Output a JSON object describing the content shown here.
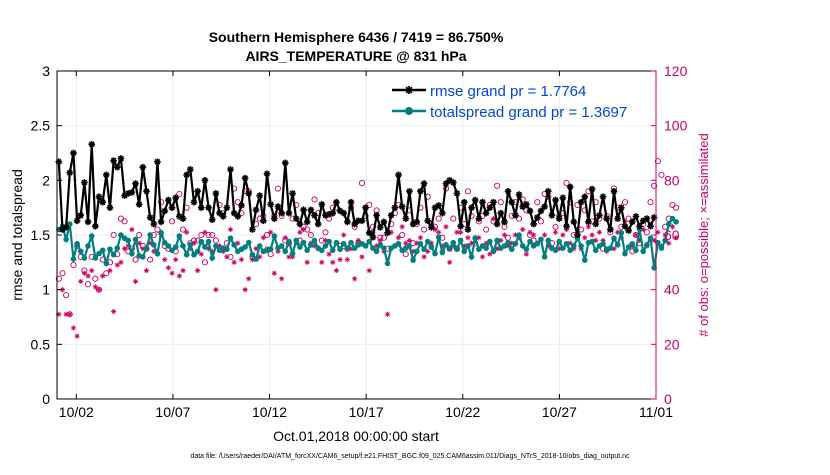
{
  "chart_data": {
    "type": "line",
    "title": [
      "Southern Hemisphere 6436 / 7419 = 86.750%",
      "AIRS_TEMPERATURE @ 831 hPa"
    ],
    "xlabel": "Oct.01,2018 00:00:00 start",
    "ylabel_left": "rmse and totalspread",
    "ylabel_right": "# of obs: o=possible; ×=assimilated",
    "footer": "data file: /Users/raeder/DAI/ATM_forcXX/CAM6_setup/f.e21.FHIST_BGC.f09_025.CAM6assim.011/Diags_NTrS_2018-10/obs_diag_output.nc",
    "xlim": [
      0.5,
      31.5
    ],
    "ylim_left": [
      0,
      3
    ],
    "ylim_right": [
      0,
      120
    ],
    "x_ticks": [
      1.5,
      6.5,
      11.5,
      16.5,
      21.5,
      26.5,
      31.5
    ],
    "x_tick_labels": [
      "10/02",
      "10/07",
      "10/12",
      "10/17",
      "10/22",
      "10/27",
      "11/01"
    ],
    "y_ticks_left": [
      0,
      0.5,
      1,
      1.5,
      2,
      2.5,
      3
    ],
    "y_tick_labels_left": [
      "0",
      "0.5",
      "1",
      "1.5",
      "2",
      "2.5",
      "3"
    ],
    "y_ticks_right": [
      0,
      20,
      40,
      60,
      80,
      100,
      120
    ],
    "y_tick_labels_right": [
      "0",
      "20",
      "40",
      "60",
      "80",
      "100",
      "120"
    ],
    "legend_position": "top-right",
    "grid": true,
    "colors": {
      "rmse": "#000000",
      "totalspread": "#007f7f",
      "obs": "#cc0066",
      "legend_text": "#0047d6",
      "grid": "#ebebeb"
    },
    "series": [
      {
        "name": "rmse grand pr = 1.7764",
        "values": [
          2.17,
          1.55,
          1.57,
          2.07,
          2.25,
          1.63,
          1.68,
          1.98,
          1.62,
          2.33,
          1.58,
          1.85,
          1.8,
          2.05,
          1.75,
          2.18,
          2.12,
          2.2,
          1.86,
          1.88,
          1.89,
          1.97,
          1.78,
          2.12,
          1.9,
          1.66,
          1.6,
          2.17,
          1.62,
          1.72,
          1.82,
          1.75,
          1.84,
          1.67,
          1.65,
          2.05,
          2.1,
          1.8,
          1.9,
          1.75,
          2.0,
          1.75,
          1.64,
          1.88,
          1.7,
          1.67,
          1.75,
          2.1,
          1.7,
          1.67,
          1.77,
          2.02,
          1.88,
          1.55,
          1.73,
          1.86,
          1.63,
          2.06,
          1.78,
          1.65,
          1.76,
          1.7,
          2.16,
          1.7,
          1.88,
          1.65,
          1.6,
          1.73,
          1.62,
          1.73,
          1.68,
          1.6,
          1.78,
          1.68,
          1.69,
          1.7,
          1.8,
          1.72,
          1.7,
          1.62,
          1.8,
          1.6,
          1.63,
          1.63,
          1.75,
          1.52,
          1.48,
          1.68,
          1.57,
          1.62,
          1.52,
          1.68,
          1.75,
          2.05,
          1.76,
          1.65,
          1.9,
          1.6,
          1.62,
          1.9,
          1.97,
          1.63,
          1.57,
          1.75,
          1.77,
          1.7,
          1.97,
          2.0,
          1.98,
          1.88,
          1.58,
          1.8,
          1.55,
          1.75,
          1.82,
          1.65,
          1.8,
          1.7,
          1.75,
          1.8,
          1.6,
          1.7,
          1.62,
          1.9,
          1.8,
          1.68,
          1.87,
          1.76,
          1.78,
          1.72,
          1.6,
          1.66,
          1.72,
          1.76,
          1.9,
          1.68,
          1.82,
          1.65,
          1.84,
          1.58,
          1.94,
          1.62,
          1.5,
          1.8,
          1.85,
          1.62,
          1.92,
          1.6,
          1.68,
          1.85,
          1.65,
          1.55,
          1.9,
          1.65,
          1.75,
          1.58,
          1.54,
          1.62,
          1.67,
          1.58,
          1.63,
          1.65,
          1.58,
          1.66
        ],
        "marker": "asterisk"
      },
      {
        "name": "totalspread grand pr = 1.3697",
        "values": [
          1.55,
          1.58,
          1.46,
          1.6,
          1.28,
          1.42,
          1.35,
          1.29,
          1.4,
          1.49,
          1.29,
          1.33,
          1.36,
          1.24,
          1.37,
          1.32,
          1.38,
          1.5,
          1.47,
          1.45,
          1.33,
          1.46,
          1.31,
          1.3,
          1.38,
          1.5,
          1.41,
          1.33,
          1.52,
          1.43,
          1.4,
          1.36,
          1.39,
          1.49,
          1.4,
          1.32,
          1.41,
          1.32,
          1.35,
          1.44,
          1.39,
          1.44,
          1.29,
          1.4,
          1.36,
          1.38,
          1.37,
          1.47,
          1.41,
          1.35,
          1.37,
          1.39,
          1.43,
          1.32,
          1.28,
          1.4,
          1.35,
          1.36,
          1.37,
          1.49,
          1.38,
          1.4,
          1.35,
          1.44,
          1.33,
          1.45,
          1.39,
          1.43,
          1.36,
          1.41,
          1.45,
          1.38,
          1.36,
          1.4,
          1.44,
          1.36,
          1.43,
          1.37,
          1.42,
          1.38,
          1.43,
          1.38,
          1.41,
          1.42,
          1.4,
          1.44,
          1.38,
          1.35,
          1.41,
          1.38,
          1.24,
          1.38,
          1.4,
          1.42,
          1.36,
          1.38,
          1.4,
          1.27,
          1.35,
          1.42,
          1.37,
          1.44,
          1.39,
          1.33,
          1.48,
          1.34,
          1.41,
          1.38,
          1.43,
          1.37,
          1.45,
          1.35,
          1.4,
          1.3,
          1.47,
          1.37,
          1.4,
          1.38,
          1.44,
          1.35,
          1.45,
          1.38,
          1.4,
          1.43,
          1.37,
          1.42,
          1.5,
          1.4,
          1.37,
          1.44,
          1.4,
          1.42,
          1.46,
          1.3,
          1.45,
          1.38,
          1.36,
          1.44,
          1.38,
          1.42,
          1.36,
          1.4,
          1.47,
          1.4,
          1.27,
          1.43,
          1.44,
          1.36,
          1.4,
          1.42,
          1.37,
          1.38,
          1.47,
          1.41,
          1.52,
          1.33,
          1.39,
          1.42,
          1.36,
          1.55,
          1.35,
          1.41,
          1.47,
          1.2,
          1.43,
          1.38,
          1.45,
          1.6,
          1.65,
          1.62
        ],
        "marker": "circle-filled"
      }
    ],
    "obs_possible": [
      44,
      46,
      38,
      31,
      49,
      56,
      52,
      47,
      42,
      52,
      44,
      40,
      51,
      46,
      50,
      60,
      53,
      66,
      65,
      54,
      55,
      51,
      60,
      56,
      55,
      51,
      60,
      62,
      72,
      56,
      55,
      65,
      54,
      75,
      62,
      70,
      57,
      58,
      58,
      60,
      50,
      60,
      60,
      58,
      71,
      68,
      57,
      52,
      77,
      72,
      68,
      76,
      76,
      52,
      64,
      66,
      67,
      60,
      53,
      67,
      77,
      67,
      58,
      57,
      66,
      71,
      58,
      63,
      62,
      60,
      73,
      68,
      58,
      61,
      66,
      70,
      70,
      56,
      56,
      55,
      70,
      63,
      57,
      79,
      67,
      71,
      63,
      69,
      59,
      59,
      55,
      64,
      68,
      71,
      60,
      53,
      69,
      57,
      64,
      70,
      62,
      74,
      64,
      63,
      66,
      59,
      77,
      55,
      66,
      55,
      70,
      64,
      76,
      67,
      57,
      65,
      67,
      62,
      71,
      65,
      78,
      72,
      63,
      59,
      67,
      72,
      66,
      73,
      69,
      60,
      58,
      72,
      65,
      75,
      74,
      57,
      63,
      67,
      68,
      79,
      72,
      60,
      71,
      62,
      69,
      76,
      65,
      72,
      66,
      55,
      67,
      61,
      77,
      70,
      63,
      72,
      66,
      54,
      60,
      57,
      64,
      61,
      72,
      78,
      87,
      82,
      63,
      66,
      71,
      70
    ],
    "obs_assimilated": [
      31,
      40,
      31,
      31,
      26,
      23,
      43,
      46,
      45,
      47,
      41,
      40,
      45,
      50,
      47,
      32,
      49,
      50,
      55,
      56,
      62,
      43,
      57,
      55,
      47,
      57,
      54,
      53,
      60,
      51,
      48,
      46,
      51,
      45,
      47,
      61,
      55,
      57,
      47,
      53,
      61,
      55,
      54,
      40,
      56,
      54,
      52,
      62,
      50,
      57,
      51,
      40,
      44,
      51,
      55,
      52,
      59,
      55,
      61,
      46,
      54,
      44,
      59,
      52,
      52,
      57,
      61,
      62,
      50,
      57,
      56,
      55,
      50,
      58,
      53,
      50,
      47,
      51,
      60,
      51,
      55,
      44,
      58,
      52,
      56,
      47,
      61,
      56,
      58,
      54,
      31,
      61,
      56,
      59,
      63,
      57,
      58,
      54,
      57,
      59,
      52,
      54,
      57,
      62,
      61,
      56,
      63,
      50,
      56,
      61,
      61,
      56,
      59,
      57,
      59,
      59,
      52,
      57,
      53,
      66,
      55,
      58,
      60,
      56,
      57,
      60,
      59,
      62,
      53,
      61,
      60,
      57,
      58,
      60,
      56,
      55,
      61,
      55,
      60,
      62,
      57,
      55,
      62,
      55,
      59,
      63,
      60,
      58,
      61,
      58,
      54,
      62,
      55,
      61,
      59,
      65,
      62,
      56,
      60,
      58,
      62,
      56,
      64,
      58,
      61,
      56,
      60,
      57,
      63,
      59
    ]
  }
}
